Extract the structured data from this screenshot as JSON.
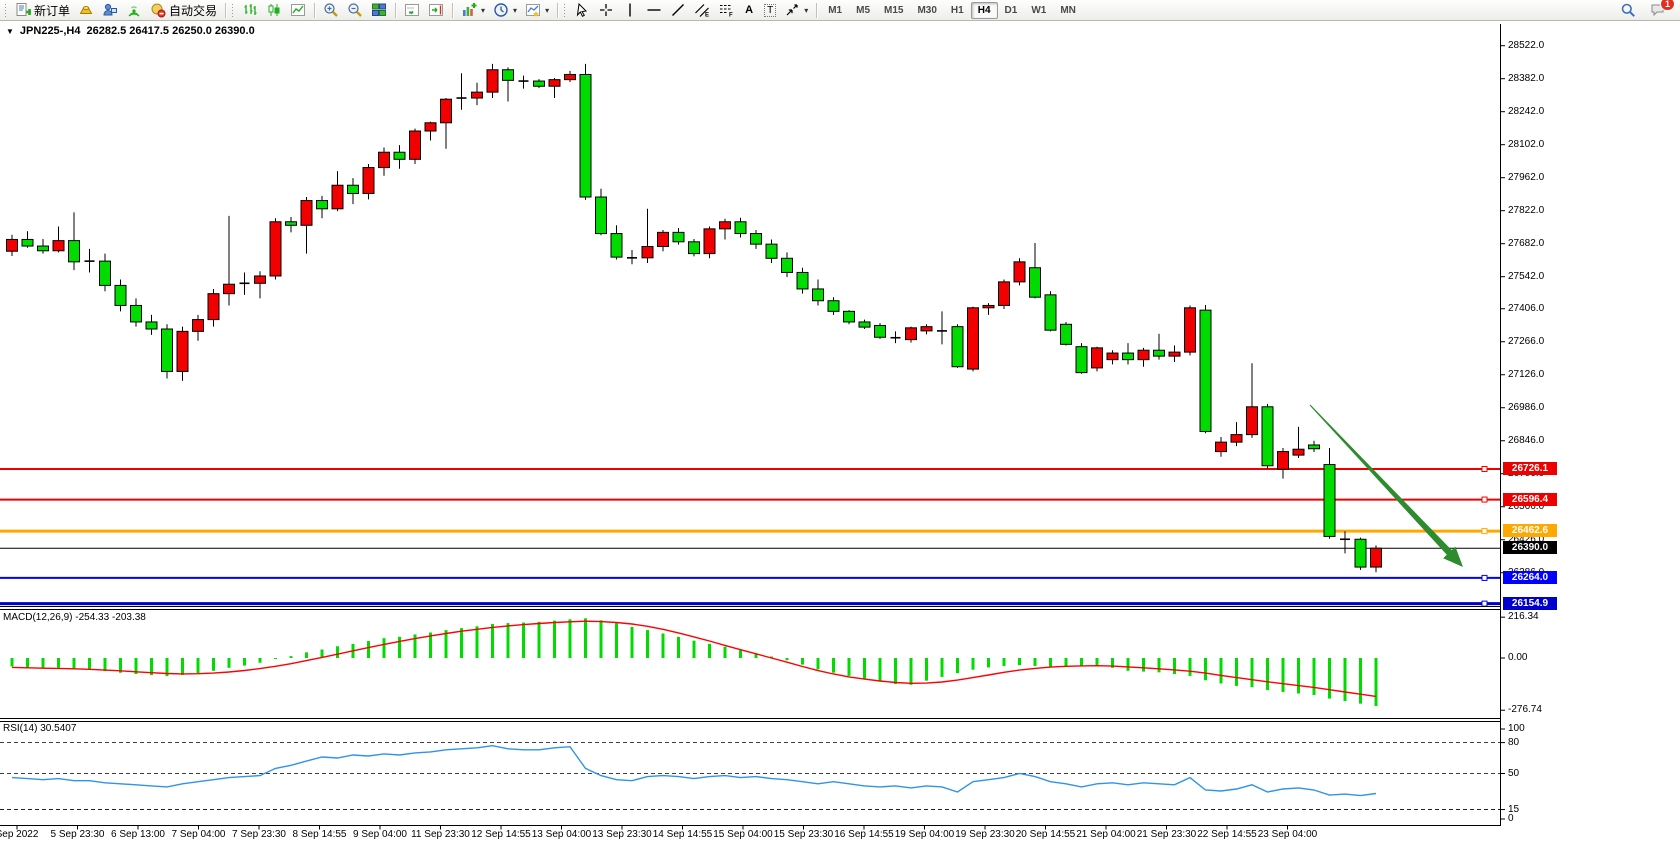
{
  "toolbar": {
    "new_order_label": "新订单",
    "auto_trading_label": "自动交易",
    "timeframes": [
      "M1",
      "M5",
      "M15",
      "M30",
      "H1",
      "H4",
      "D1",
      "W1",
      "MN"
    ],
    "selected_timeframe": "H4",
    "chat_badge": "1",
    "icon_names": [
      "new-order-icon",
      "gold-ingot-icon",
      "support-icon",
      "signal-icon",
      "auto-trading-icon",
      "bar-chart-icon",
      "candlestick-icon",
      "line-chart-icon",
      "zoom-in-icon",
      "zoom-out-icon",
      "tile-windows-icon",
      "auto-scroll-icon",
      "chart-shift-icon",
      "indicators-icon",
      "periods-icon",
      "templates-icon",
      "cursor-icon",
      "crosshair-icon",
      "vertical-line-icon",
      "horizontal-line-icon",
      "trendline-icon",
      "channel-icon",
      "fibonacci-icon",
      "text-icon",
      "text-label-icon",
      "shapes-icon",
      "search-icon",
      "chat-icon"
    ]
  },
  "title": {
    "symbol_period": "JPN225-,H4",
    "ohlc": "26282.5 26417.5 26250.0 26390.0"
  },
  "price_axis": {
    "ticks": [
      "28522.0",
      "28382.0",
      "28242.0",
      "28102.0",
      "27962.0",
      "27822.0",
      "27682.0",
      "27542.0",
      "27406.0",
      "27266.0",
      "27126.0",
      "26986.0",
      "26846.0",
      "26706.0",
      "26566.0",
      "26426.0",
      "26286.0"
    ]
  },
  "hlines": [
    {
      "label": "26726.1",
      "price": 26726.1,
      "color": "#ee0000",
      "width": 2
    },
    {
      "label": "26596.4",
      "price": 26596.4,
      "color": "#ee0000",
      "width": 2
    },
    {
      "label": "26462.6",
      "price": 26462.6,
      "color": "#ffa800",
      "width": 3
    },
    {
      "label": "26264.0",
      "price": 26264.0,
      "color": "#0000ff",
      "width": 2
    },
    {
      "label": "26154.9",
      "price": 26154.9,
      "color": "#0000cc",
      "width": 3
    }
  ],
  "current_price": {
    "label": "26390.0",
    "price": 26390.0,
    "bg": "#000000"
  },
  "macd": {
    "label": "MACD(12,26,9) -254.33 -203.38",
    "axis": [
      {
        "text": "216.34",
        "value": 216.34
      },
      {
        "text": "0.00",
        "value": 0
      },
      {
        "text": "-276.74",
        "value": -276.74
      }
    ],
    "histogram_color": "#00dc00",
    "signal_color": "#ff0000"
  },
  "rsi": {
    "label": "RSI(14) 30.5407",
    "axis": [
      {
        "text": "100",
        "value": 100
      },
      {
        "text": "80",
        "value": 80
      },
      {
        "text": "50",
        "value": 50
      },
      {
        "text": "15",
        "value": 15
      },
      {
        "text": "0",
        "value": 0
      }
    ],
    "levels": [
      80,
      50,
      15
    ],
    "line_color": "#2f94e8"
  },
  "time_axis": [
    "Sep 2022",
    "5 Sep 23:30",
    "6 Sep 13:00",
    "7 Sep 04:00",
    "7 Sep 23:30",
    "8 Sep 14:55",
    "9 Sep 04:00",
    "11 Sep 23:30",
    "12 Sep 14:55",
    "13 Sep 04:00",
    "13 Sep 23:30",
    "14 Sep 14:55",
    "15 Sep 04:00",
    "15 Sep 23:30",
    "16 Sep 14:55",
    "19 Sep 04:00",
    "19 Sep 23:30",
    "20 Sep 14:55",
    "21 Sep 04:00",
    "21 Sep 23:30",
    "22 Sep 14:55",
    "23 Sep 04:00"
  ],
  "annotation": {
    "type": "arrow",
    "color": "#2e8b2e",
    "from": [
      1310,
      405
    ],
    "to": [
      1463,
      567
    ]
  },
  "colors": {
    "bull": "#f20000",
    "bear": "#00dc00",
    "wick": "#000000"
  },
  "chart_data": {
    "type": "candlestick",
    "symbol": "JPN225-",
    "period": "H4",
    "price_range_visible": [
      26140,
      28560
    ],
    "candles_ohlc": [
      [
        27650,
        27720,
        27630,
        27700
      ],
      [
        27700,
        27735,
        27665,
        27672
      ],
      [
        27672,
        27702,
        27640,
        27652
      ],
      [
        27652,
        27755,
        27645,
        27695
      ],
      [
        27695,
        27815,
        27570,
        27605
      ],
      [
        27605,
        27660,
        27560,
        27608
      ],
      [
        27608,
        27640,
        27480,
        27505
      ],
      [
        27505,
        27530,
        27395,
        27420
      ],
      [
        27420,
        27450,
        27330,
        27350
      ],
      [
        27350,
        27380,
        27295,
        27320
      ],
      [
        27320,
        27340,
        27110,
        27140
      ],
      [
        27140,
        27330,
        27100,
        27310
      ],
      [
        27310,
        27380,
        27270,
        27360
      ],
      [
        27360,
        27490,
        27330,
        27470
      ],
      [
        27470,
        27800,
        27420,
        27510
      ],
      [
        27510,
        27560,
        27465,
        27514
      ],
      [
        27514,
        27565,
        27450,
        27545
      ],
      [
        27545,
        27790,
        27530,
        27775
      ],
      [
        27775,
        27795,
        27730,
        27760
      ],
      [
        27760,
        27880,
        27640,
        27865
      ],
      [
        27865,
        27885,
        27790,
        27830
      ],
      [
        27830,
        27990,
        27820,
        27930
      ],
      [
        27930,
        27960,
        27850,
        27895
      ],
      [
        27895,
        28020,
        27870,
        28005
      ],
      [
        28005,
        28090,
        27970,
        28070
      ],
      [
        28070,
        28100,
        28000,
        28040
      ],
      [
        28040,
        28170,
        28020,
        28160
      ],
      [
        28160,
        28200,
        28120,
        28195
      ],
      [
        28195,
        28300,
        28085,
        28295
      ],
      [
        28295,
        28405,
        28250,
        28300
      ],
      [
        28300,
        28365,
        28270,
        28325
      ],
      [
        28325,
        28445,
        28300,
        28420
      ],
      [
        28420,
        28430,
        28285,
        28375
      ],
      [
        28375,
        28395,
        28340,
        28372
      ],
      [
        28372,
        28380,
        28342,
        28350
      ],
      [
        28350,
        28385,
        28300,
        28378
      ],
      [
        28378,
        28415,
        28368,
        28400
      ],
      [
        28400,
        28445,
        27868,
        27880
      ],
      [
        27880,
        27915,
        27718,
        27725
      ],
      [
        27725,
        27760,
        27615,
        27625
      ],
      [
        27625,
        27655,
        27595,
        27622
      ],
      [
        27622,
        27830,
        27600,
        27670
      ],
      [
        27670,
        27740,
        27650,
        27730
      ],
      [
        27730,
        27748,
        27678,
        27690
      ],
      [
        27690,
        27702,
        27628,
        27640
      ],
      [
        27640,
        27755,
        27620,
        27745
      ],
      [
        27745,
        27788,
        27700,
        27775
      ],
      [
        27775,
        27792,
        27708,
        27725
      ],
      [
        27725,
        27740,
        27660,
        27680
      ],
      [
        27680,
        27700,
        27600,
        27620
      ],
      [
        27620,
        27645,
        27540,
        27560
      ],
      [
        27560,
        27580,
        27470,
        27490
      ],
      [
        27490,
        27530,
        27420,
        27440
      ],
      [
        27440,
        27455,
        27380,
        27395
      ],
      [
        27395,
        27400,
        27340,
        27350
      ],
      [
        27350,
        27360,
        27320,
        27328
      ],
      [
        27335,
        27345,
        27278,
        27285
      ],
      [
        27285,
        27310,
        27260,
        27283
      ],
      [
        27275,
        27330,
        27262,
        27325
      ],
      [
        27312,
        27340,
        27298,
        27330
      ],
      [
        27315,
        27395,
        27255,
        27312
      ],
      [
        27330,
        27340,
        27155,
        27160
      ],
      [
        27150,
        27415,
        27140,
        27410
      ],
      [
        27410,
        27430,
        27380,
        27420
      ],
      [
        27420,
        27530,
        27405,
        27520
      ],
      [
        27520,
        27620,
        27505,
        27605
      ],
      [
        27580,
        27685,
        27450,
        27455
      ],
      [
        27465,
        27480,
        27310,
        27315
      ],
      [
        27340,
        27350,
        27250,
        27255
      ],
      [
        27245,
        27260,
        27130,
        27135
      ],
      [
        27155,
        27245,
        27140,
        27240
      ],
      [
        27190,
        27230,
        27170,
        27218
      ],
      [
        27218,
        27260,
        27170,
        27190
      ],
      [
        27190,
        27240,
        27160,
        27230
      ],
      [
        27230,
        27300,
        27190,
        27205
      ],
      [
        27205,
        27250,
        27180,
        27222
      ],
      [
        27222,
        27420,
        27208,
        27410
      ],
      [
        27400,
        27422,
        26878,
        26885
      ],
      [
        26800,
        26862,
        26778,
        26840
      ],
      [
        26840,
        26925,
        26823,
        26872
      ],
      [
        26872,
        27175,
        26858,
        26990
      ],
      [
        26990,
        27002,
        26728,
        26740
      ],
      [
        26725,
        26815,
        26685,
        26800
      ],
      [
        26785,
        26905,
        26773,
        26810
      ],
      [
        26828,
        26846,
        26798,
        26812
      ],
      [
        26745,
        26815,
        26430,
        26440
      ],
      [
        26430,
        26462,
        26368,
        26428
      ],
      [
        26428,
        26435,
        26298,
        26310
      ],
      [
        26310,
        26402,
        26288,
        26390
      ]
    ],
    "macd_histogram": [
      -45,
      -50,
      -55,
      -52,
      -58,
      -62,
      -70,
      -78,
      -85,
      -90,
      -96,
      -90,
      -80,
      -68,
      -52,
      -40,
      -25,
      -5,
      10,
      30,
      45,
      62,
      75,
      90,
      105,
      112,
      125,
      135,
      148,
      158,
      168,
      180,
      185,
      188,
      192,
      198,
      205,
      210,
      200,
      185,
      165,
      148,
      130,
      112,
      92,
      75,
      60,
      42,
      25,
      8,
      -12,
      -35,
      -60,
      -78,
      -95,
      -110,
      -125,
      -138,
      -142,
      -120,
      -100,
      -80,
      -62,
      -50,
      -42,
      -38,
      -42,
      -48,
      -45,
      -40,
      -38,
      -52,
      -68,
      -72,
      -76,
      -85,
      -95,
      -118,
      -135,
      -148,
      -155,
      -170,
      -180,
      -188,
      -196,
      -215,
      -228,
      -242,
      -254.33
    ],
    "macd_signal": [
      -50,
      -52,
      -54,
      -55,
      -57,
      -60,
      -64,
      -68,
      -73,
      -78,
      -82,
      -84,
      -83,
      -80,
      -74,
      -66,
      -56,
      -44,
      -30,
      -14,
      3,
      20,
      38,
      55,
      72,
      88,
      103,
      117,
      130,
      142,
      152,
      162,
      170,
      177,
      183,
      188,
      192,
      195,
      193,
      188,
      180,
      168,
      152,
      133,
      112,
      90,
      67,
      44,
      22,
      0,
      -22,
      -45,
      -67,
      -85,
      -100,
      -112,
      -122,
      -130,
      -134,
      -133,
      -127,
      -117,
      -104,
      -90,
      -76,
      -64,
      -55,
      -48,
      -44,
      -42,
      -41,
      -43,
      -47,
      -52,
      -57,
      -63,
      -70,
      -80,
      -92,
      -104,
      -115,
      -126,
      -136,
      -146,
      -156,
      -168,
      -180,
      -192,
      -203.38
    ],
    "rsi_values": [
      46,
      45,
      44,
      45,
      43,
      43,
      41,
      40,
      39,
      38,
      37,
      40,
      42,
      44,
      46,
      47,
      48,
      55,
      58,
      62,
      66,
      65,
      68,
      67,
      69,
      68,
      70,
      71,
      73,
      74,
      75,
      77,
      74,
      73,
      73,
      75,
      76,
      55,
      48,
      44,
      43,
      47,
      48,
      47,
      45,
      47,
      48,
      46,
      47,
      45,
      44,
      42,
      40,
      42,
      40,
      38,
      37,
      38,
      36,
      38,
      37,
      32,
      42,
      44,
      46,
      50,
      47,
      42,
      40,
      37,
      40,
      41,
      39,
      41,
      40,
      39,
      46,
      34,
      33,
      35,
      39,
      32,
      35,
      36,
      34,
      29,
      30,
      28.5,
      30.54
    ]
  }
}
